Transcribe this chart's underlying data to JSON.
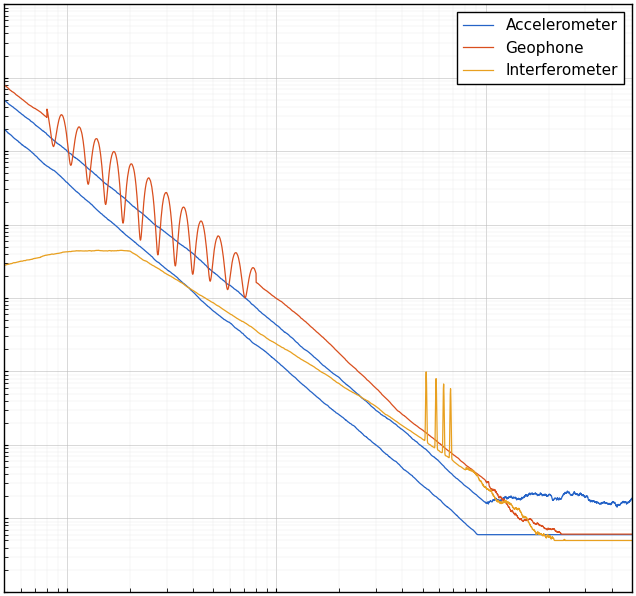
{
  "legend": [
    "Accelerometer",
    "Geophone",
    "Interferometer"
  ],
  "colors": [
    "#2563c7",
    "#d94f1e",
    "#e8a020"
  ],
  "linewidths": [
    0.9,
    0.9,
    0.9
  ],
  "xlim": [
    0.5,
    500
  ],
  "ylim": [
    1e-13,
    1e-05
  ],
  "grid_color": "#bbbbbb",
  "legend_loc": "upper right",
  "legend_fontsize": 11,
  "background": "#ffffff"
}
